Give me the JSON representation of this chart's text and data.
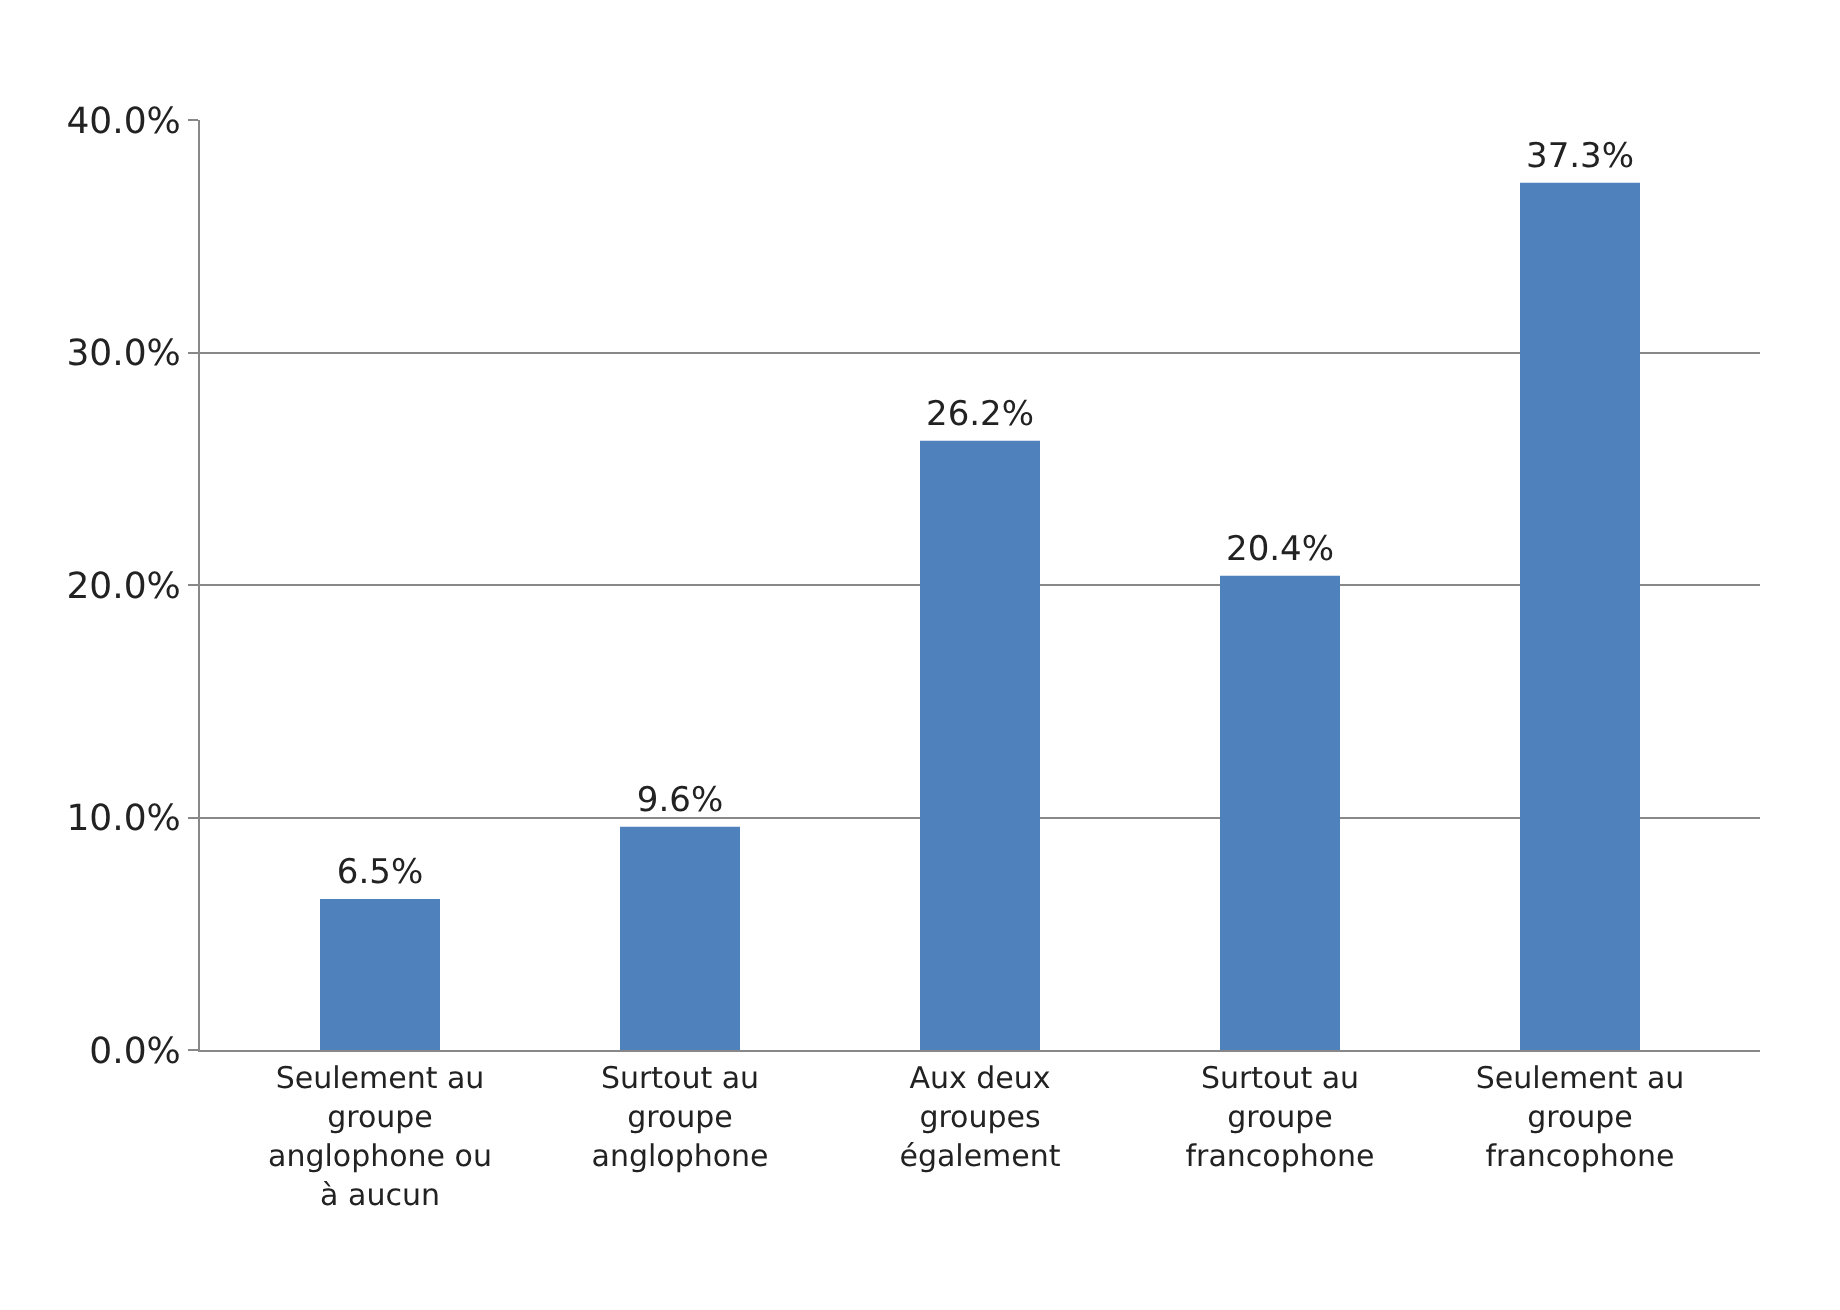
{
  "chart_data": {
    "type": "bar",
    "categories": [
      "Seulement au groupe anglophone ou à aucun",
      "Surtout au groupe anglophone",
      "Aux deux groupes également",
      "Surtout au groupe francophone",
      "Seulement au groupe francophone"
    ],
    "values": [
      6.5,
      9.6,
      26.2,
      20.4,
      37.3
    ],
    "value_labels": [
      "6.5%",
      "9.6%",
      "26.2%",
      "20.4%",
      "37.3%"
    ],
    "color": "#4f81bd",
    "ylim": [
      0,
      40
    ],
    "yticks": [
      {
        "value": 0,
        "label": "0.0%"
      },
      {
        "value": 10,
        "label": "10.0%"
      },
      {
        "value": 20,
        "label": "20.0%"
      },
      {
        "value": 30,
        "label": "30.0%"
      },
      {
        "value": 40,
        "label": "40.0%"
      }
    ],
    "grid": "y"
  }
}
